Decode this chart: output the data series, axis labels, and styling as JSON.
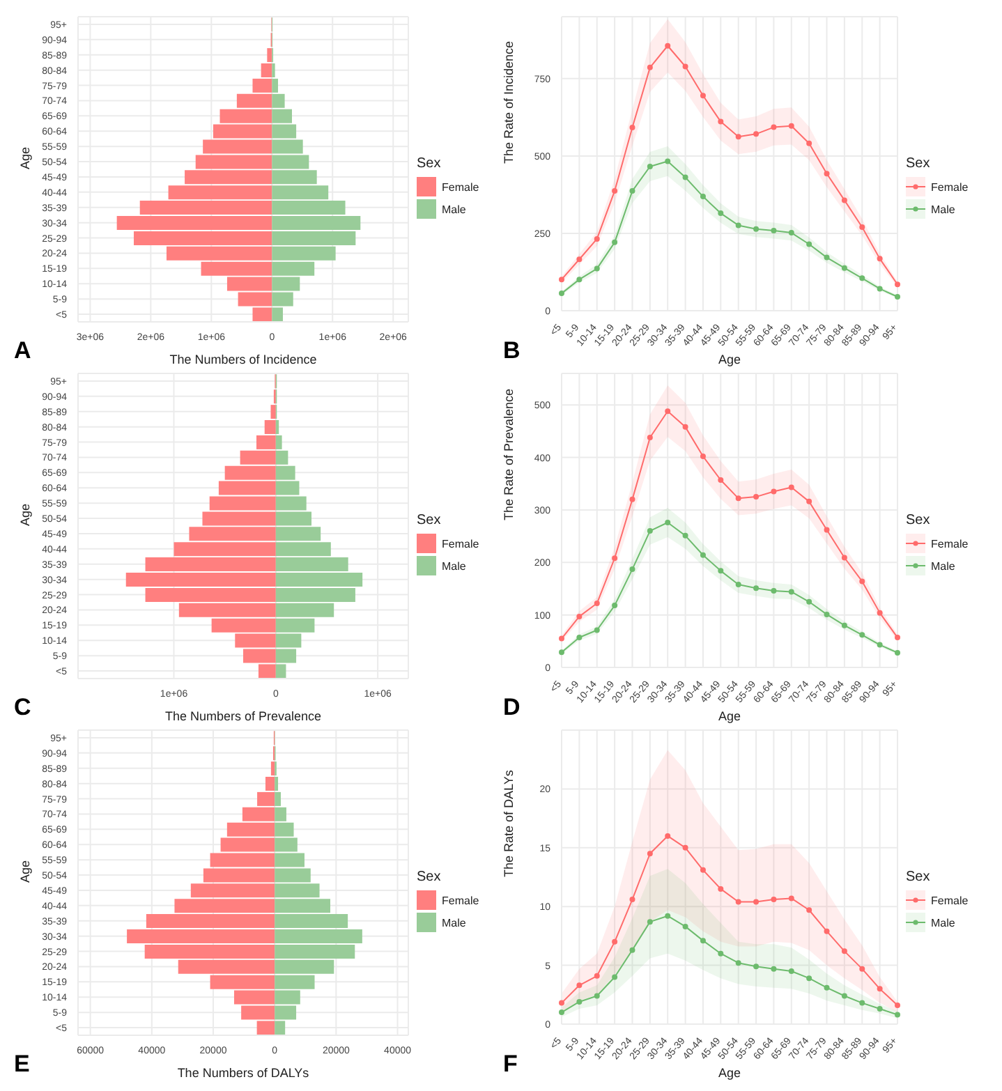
{
  "chart_data": [
    {
      "type": "bar",
      "orientation": "horizontal",
      "stacked": true,
      "xlabel": "The Numbers of Incidence",
      "ylabel": "Age",
      "legend_title": "Sex",
      "legend": "right",
      "grid": true,
      "annotations": [
        "A"
      ],
      "categories": [
        "95+",
        "90-94",
        "85-89",
        "80-84",
        "75-79",
        "70-74",
        "65-69",
        "60-64",
        "55-59",
        "50-54",
        "45-49",
        "40-44",
        "35-39",
        "30-34",
        "25-29",
        "20-24",
        "15-19",
        "10-14",
        "5-9",
        "<5"
      ],
      "xlim": [
        -3200000,
        2250000
      ],
      "xticks": [
        {
          "value": -3000000,
          "label": "3e+06"
        },
        {
          "value": -2000000,
          "label": "2e+06"
        },
        {
          "value": -1000000,
          "label": "1e+06"
        },
        0,
        {
          "value": 1000000,
          "label": "1e+06"
        },
        {
          "value": 2000000,
          "label": "2e+06"
        }
      ],
      "series": [
        {
          "name": "Female",
          "color": "#ff7f7f",
          "values": [
            -10000,
            -20000,
            -80000,
            -180000,
            -320000,
            -580000,
            -860000,
            -970000,
            -1140000,
            -1260000,
            -1440000,
            -1710000,
            -2180000,
            -2560000,
            -2280000,
            -1740000,
            -1170000,
            -740000,
            -560000,
            -320000
          ]
        },
        {
          "name": "Male",
          "color": "#99cc99",
          "values": [
            10000,
            10000,
            20000,
            50000,
            100000,
            210000,
            330000,
            400000,
            510000,
            610000,
            740000,
            930000,
            1210000,
            1460000,
            1380000,
            1050000,
            700000,
            460000,
            350000,
            180000
          ]
        }
      ]
    },
    {
      "type": "line",
      "xlabel": "Age",
      "ylabel": "The Rate of Incidence",
      "legend_title": "Sex",
      "legend": "right",
      "grid": true,
      "marker": "circle",
      "annotations": [
        "B"
      ],
      "categories": [
        "<5",
        "5-9",
        "10-14",
        "15-19",
        "20-24",
        "25-29",
        "30-34",
        "35-39",
        "40-44",
        "45-49",
        "50-54",
        "55-59",
        "60-64",
        "65-69",
        "70-74",
        "75-79",
        "80-84",
        "85-89",
        "90-94",
        "95+"
      ],
      "ylim": [
        0,
        950
      ],
      "yticks": [
        0,
        250,
        500,
        750
      ],
      "series": [
        {
          "name": "Female",
          "color": "#ff6b6b",
          "values": [
            101,
            166,
            232,
            387,
            592,
            786,
            856,
            789,
            695,
            611,
            562,
            571,
            593,
            597,
            541,
            443,
            357,
            270,
            168,
            85
          ],
          "lower": [
            91,
            149,
            209,
            348,
            533,
            707,
            770,
            710,
            626,
            550,
            506,
            514,
            534,
            537,
            487,
            399,
            321,
            243,
            151,
            77
          ],
          "upper": [
            111,
            183,
            255,
            426,
            651,
            865,
            942,
            868,
            765,
            672,
            618,
            628,
            652,
            657,
            595,
            487,
            393,
            297,
            185,
            94
          ]
        },
        {
          "name": "Male",
          "color": "#6dbb6d",
          "values": [
            56,
            101,
            136,
            221,
            387,
            466,
            483,
            431,
            369,
            315,
            276,
            264,
            259,
            252,
            215,
            172,
            138,
            105,
            71,
            45
          ],
          "lower": [
            50,
            91,
            122,
            199,
            348,
            419,
            435,
            388,
            332,
            284,
            248,
            238,
            233,
            227,
            194,
            155,
            124,
            95,
            64,
            41
          ],
          "upper": [
            62,
            111,
            150,
            243,
            426,
            513,
            531,
            474,
            406,
            347,
            304,
            290,
            285,
            277,
            237,
            189,
            152,
            116,
            78,
            50
          ]
        }
      ]
    },
    {
      "type": "bar",
      "orientation": "horizontal",
      "stacked": true,
      "xlabel": "The Numbers of Prevalence",
      "ylabel": "Age",
      "legend_title": "Sex",
      "legend": "right",
      "grid": true,
      "annotations": [
        "C"
      ],
      "categories": [
        "95+",
        "90-94",
        "85-89",
        "80-84",
        "75-79",
        "70-74",
        "65-69",
        "60-64",
        "55-59",
        "50-54",
        "45-49",
        "40-44",
        "35-39",
        "30-34",
        "25-29",
        "20-24",
        "15-19",
        "10-14",
        "5-9",
        "<5"
      ],
      "xlim": [
        -1940000,
        1300000
      ],
      "xticks": [
        {
          "value": -1000000,
          "label": "1e+06"
        },
        0,
        {
          "value": 1000000,
          "label": "1e+06"
        }
      ],
      "series": [
        {
          "name": "Female",
          "color": "#ff7f7f",
          "values": [
            -10000,
            -20000,
            -50000,
            -110000,
            -190000,
            -350000,
            -500000,
            -560000,
            -650000,
            -720000,
            -850000,
            -1000000,
            -1280000,
            -1470000,
            -1280000,
            -950000,
            -630000,
            -400000,
            -320000,
            -170000
          ]
        },
        {
          "name": "Male",
          "color": "#99cc99",
          "values": [
            10000,
            10000,
            10000,
            30000,
            60000,
            120000,
            190000,
            230000,
            300000,
            350000,
            440000,
            540000,
            710000,
            850000,
            780000,
            570000,
            380000,
            250000,
            200000,
            100000
          ]
        }
      ]
    },
    {
      "type": "line",
      "xlabel": "Age",
      "ylabel": "The Rate of Prevalence",
      "legend_title": "Sex",
      "legend": "right",
      "grid": true,
      "marker": "circle",
      "annotations": [
        "D"
      ],
      "categories": [
        "<5",
        "5-9",
        "10-14",
        "15-19",
        "20-24",
        "25-29",
        "30-34",
        "35-39",
        "40-44",
        "45-49",
        "50-54",
        "55-59",
        "60-64",
        "65-69",
        "70-74",
        "75-79",
        "80-84",
        "85-89",
        "90-94",
        "95+"
      ],
      "ylim": [
        0,
        560
      ],
      "yticks": [
        0,
        100,
        200,
        300,
        400,
        500
      ],
      "series": [
        {
          "name": "Female",
          "color": "#ff6b6b",
          "values": [
            55,
            97,
            122,
            208,
            320,
            438,
            488,
            458,
            402,
            357,
            322,
            325,
            335,
            343,
            316,
            262,
            209,
            164,
            104,
            57
          ],
          "lower": [
            50,
            87,
            110,
            187,
            288,
            394,
            439,
            412,
            362,
            321,
            290,
            293,
            302,
            309,
            284,
            236,
            188,
            148,
            94,
            51
          ],
          "upper": [
            61,
            107,
            134,
            229,
            352,
            482,
            537,
            504,
            442,
            393,
            354,
            358,
            369,
            377,
            348,
            288,
            230,
            180,
            114,
            63
          ]
        },
        {
          "name": "Male",
          "color": "#6dbb6d",
          "values": [
            29,
            57,
            71,
            118,
            187,
            260,
            276,
            251,
            214,
            184,
            158,
            151,
            146,
            144,
            125,
            101,
            80,
            62,
            43,
            28
          ],
          "lower": [
            26,
            51,
            64,
            106,
            168,
            234,
            248,
            226,
            193,
            166,
            142,
            136,
            131,
            130,
            113,
            91,
            72,
            56,
            39,
            25
          ],
          "upper": [
            32,
            63,
            78,
            130,
            206,
            286,
            304,
            276,
            235,
            202,
            174,
            166,
            161,
            158,
            138,
            111,
            88,
            68,
            47,
            31
          ]
        }
      ]
    },
    {
      "type": "bar",
      "orientation": "horizontal",
      "stacked": true,
      "xlabel": "The Numbers of DALYs",
      "ylabel": "Age",
      "legend_title": "Sex",
      "legend": "right",
      "grid": true,
      "annotations": [
        "E"
      ],
      "categories": [
        "95+",
        "90-94",
        "85-89",
        "80-84",
        "75-79",
        "70-74",
        "65-69",
        "60-64",
        "55-59",
        "50-54",
        "45-49",
        "40-44",
        "35-39",
        "30-34",
        "25-29",
        "20-24",
        "15-19",
        "10-14",
        "5-9",
        "<5"
      ],
      "xlim": [
        -64000,
        43500
      ],
      "xticks": [
        {
          "value": -60000,
          "label": "60000"
        },
        {
          "value": -40000,
          "label": "40000"
        },
        {
          "value": -20000,
          "label": "20000"
        },
        0,
        20000,
        40000
      ],
      "series": [
        {
          "name": "Female",
          "color": "#ff7f7f",
          "values": [
            -300,
            -500,
            -1200,
            -3000,
            -5700,
            -10500,
            -15500,
            -17600,
            -21000,
            -23200,
            -27300,
            -32600,
            -41800,
            -48100,
            -42300,
            -31400,
            -21000,
            -13200,
            -10900,
            -5800
          ]
        },
        {
          "name": "Male",
          "color": "#99cc99",
          "values": [
            100,
            300,
            600,
            1100,
            2000,
            3800,
            6200,
            7400,
            9700,
            11700,
            14600,
            18100,
            23800,
            28500,
            26100,
            19300,
            13000,
            8300,
            7000,
            3400
          ]
        }
      ]
    },
    {
      "type": "line",
      "xlabel": "Age",
      "ylabel": "The Rate of DALYs",
      "legend_title": "Sex",
      "legend": "right",
      "grid": true,
      "marker": "circle",
      "annotations": [
        "F"
      ],
      "categories": [
        "<5",
        "5-9",
        "10-14",
        "15-19",
        "20-24",
        "25-29",
        "30-34",
        "35-39",
        "40-44",
        "45-49",
        "50-54",
        "55-59",
        "60-64",
        "65-69",
        "70-74",
        "75-79",
        "80-84",
        "85-89",
        "90-94",
        "95+"
      ],
      "ylim": [
        0,
        25
      ],
      "yticks": [
        0,
        5,
        10,
        15,
        20
      ],
      "series": [
        {
          "name": "Female",
          "color": "#ff6b6b",
          "values": [
            1.8,
            3.3,
            4.1,
            7.0,
            10.6,
            14.5,
            16.0,
            15.0,
            13.1,
            11.5,
            10.4,
            10.4,
            10.6,
            10.7,
            9.7,
            7.9,
            6.2,
            4.7,
            3.0,
            1.6
          ],
          "lower": [
            1.1,
            2.0,
            2.5,
            4.2,
            6.4,
            8.7,
            9.7,
            9.1,
            7.9,
            7.0,
            6.6,
            6.6,
            7.0,
            6.9,
            6.3,
            5.0,
            3.9,
            2.9,
            1.8,
            1.0
          ],
          "upper": [
            2.6,
            4.7,
            6.0,
            10.0,
            15.5,
            20.8,
            23.3,
            21.6,
            18.8,
            16.8,
            14.8,
            14.9,
            15.3,
            15.3,
            13.7,
            11.3,
            8.9,
            6.7,
            4.0,
            1.9
          ]
        },
        {
          "name": "Male",
          "color": "#6dbb6d",
          "values": [
            1.0,
            1.9,
            2.4,
            4.0,
            6.3,
            8.7,
            9.2,
            8.3,
            7.1,
            6.0,
            5.2,
            4.9,
            4.7,
            4.5,
            3.9,
            3.1,
            2.4,
            1.8,
            1.3,
            0.8
          ],
          "lower": [
            0.6,
            1.3,
            1.6,
            2.7,
            4.1,
            5.6,
            6.0,
            5.4,
            4.6,
            3.9,
            3.4,
            3.2,
            3.1,
            3.0,
            2.6,
            2.0,
            1.6,
            1.2,
            0.9,
            0.5
          ],
          "upper": [
            1.4,
            2.7,
            3.3,
            5.7,
            9.0,
            12.6,
            13.2,
            12.0,
            10.2,
            8.6,
            7.0,
            6.8,
            6.8,
            6.5,
            5.5,
            4.3,
            3.3,
            2.5,
            1.7,
            1.1
          ]
        }
      ]
    }
  ]
}
